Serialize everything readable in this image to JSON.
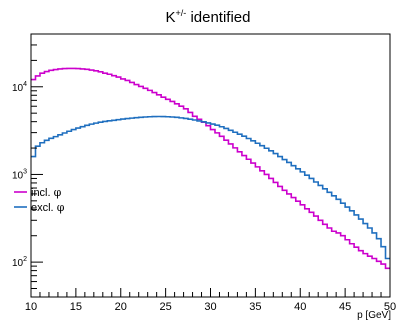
{
  "chart_data": {
    "type": "line",
    "title_main": "K",
    "title_sup": "+/-",
    "title_rest": " identified",
    "xlabel": "p [GeV]",
    "ylabel": "",
    "xlim": [
      10,
      50
    ],
    "ylim": [
      40,
      40000
    ],
    "y_scale": "log",
    "grid": false,
    "legend_position": "middle-left",
    "x_ticks": [
      10,
      15,
      20,
      25,
      30,
      35,
      40,
      45,
      50
    ],
    "x_tick_labels": [
      "10",
      "15",
      "20",
      "25",
      "30",
      "35",
      "40",
      "45",
      "50"
    ],
    "y_major_ticks": [
      {
        "value": 100,
        "base": "10",
        "exp": "2"
      },
      {
        "value": 1000,
        "base": "10",
        "exp": "3"
      },
      {
        "value": 10000,
        "base": "10",
        "exp": "4"
      }
    ],
    "x": [
      10,
      10.5,
      11,
      11.5,
      12,
      12.5,
      13,
      13.5,
      14,
      14.5,
      15,
      15.5,
      16,
      16.5,
      17,
      17.5,
      18,
      18.5,
      19,
      19.5,
      20,
      20.5,
      21,
      21.5,
      22,
      22.5,
      23,
      23.5,
      24,
      24.5,
      25,
      25.5,
      26,
      26.5,
      27,
      27.5,
      28,
      28.5,
      29,
      29.5,
      30,
      30.5,
      31,
      31.5,
      32,
      32.5,
      33,
      33.5,
      34,
      34.5,
      35,
      35.5,
      36,
      36.5,
      37,
      37.5,
      38,
      38.5,
      39,
      39.5,
      40,
      40.5,
      41,
      41.5,
      42,
      42.5,
      43,
      43.5,
      44,
      44.5,
      45,
      45.5,
      46,
      46.5,
      47,
      47.5,
      48,
      48.5,
      49,
      49.5
    ],
    "series": [
      {
        "name": "incl. φ",
        "name_text": "incl. ",
        "name_symbol": "φ",
        "color": "#cc00cc",
        "values": [
          12100,
          13300,
          14300,
          14900,
          15400,
          15700,
          16000,
          16150,
          16200,
          16200,
          16150,
          16000,
          15800,
          15500,
          15200,
          14800,
          14300,
          13900,
          13400,
          12900,
          12300,
          11800,
          11200,
          10600,
          10100,
          9600,
          9100,
          8600,
          8100,
          7600,
          7200,
          6800,
          6400,
          6000,
          5600,
          5100,
          4600,
          4250,
          3950,
          3600,
          3250,
          2980,
          2720,
          2460,
          2230,
          2010,
          1810,
          1640,
          1490,
          1350,
          1220,
          1100,
          1000,
          900,
          810,
          730,
          660,
          600,
          545,
          495,
          450,
          405,
          370,
          335,
          300,
          270,
          245,
          225,
          215,
          200,
          180,
          162,
          148,
          135,
          125,
          117,
          110,
          102,
          95,
          85
        ]
      },
      {
        "name": "excl. φ",
        "name_text": "excl. ",
        "name_symbol": "φ",
        "color": "#1f6fbf",
        "values": [
          1600,
          2100,
          2300,
          2450,
          2580,
          2700,
          2830,
          2970,
          3110,
          3250,
          3380,
          3510,
          3630,
          3750,
          3850,
          3950,
          4020,
          4090,
          4150,
          4210,
          4280,
          4340,
          4390,
          4440,
          4490,
          4520,
          4550,
          4570,
          4580,
          4570,
          4550,
          4520,
          4480,
          4420,
          4350,
          4270,
          4180,
          4080,
          3980,
          3870,
          3760,
          3650,
          3500,
          3350,
          3190,
          3030,
          2880,
          2730,
          2570,
          2420,
          2270,
          2130,
          1990,
          1860,
          1730,
          1600,
          1480,
          1370,
          1260,
          1160,
          1070,
          980,
          900,
          820,
          750,
          685,
          625,
          570,
          520,
          470,
          425,
          385,
          345,
          310,
          275,
          245,
          215,
          185,
          150,
          110
        ]
      }
    ]
  }
}
